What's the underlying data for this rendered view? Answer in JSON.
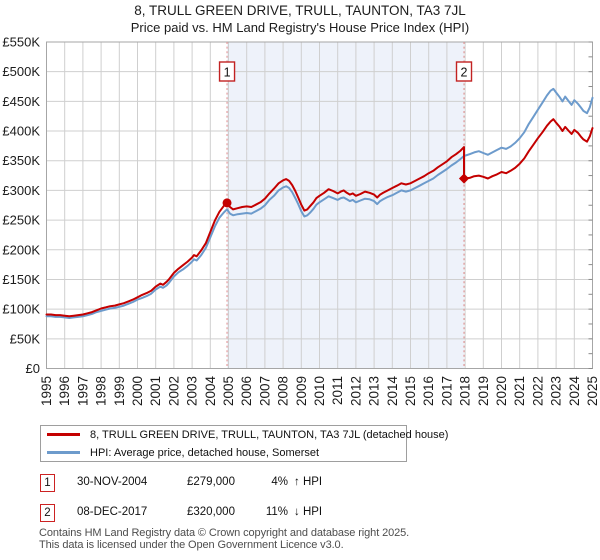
{
  "title": "8, TRULL GREEN DRIVE, TRULL, TAUNTON, TA3 7JL",
  "subtitle": "Price paid vs. HM Land Registry's House Price Index (HPI)",
  "chart_data": {
    "type": "line",
    "units": "GBP thousands",
    "x_axis": {
      "min": 1995,
      "max": 2025,
      "ticks": [
        1995,
        1996,
        1997,
        1998,
        1999,
        2000,
        2001,
        2002,
        2003,
        2004,
        2005,
        2006,
        2007,
        2008,
        2009,
        2010,
        2011,
        2012,
        2013,
        2014,
        2015,
        2016,
        2017,
        2018,
        2019,
        2020,
        2021,
        2022,
        2023,
        2024,
        2025
      ]
    },
    "y_axis": {
      "min": 0,
      "max": 550,
      "tick_step": 50,
      "tick_labels": [
        "£0",
        "£50K",
        "£100K",
        "£150K",
        "£200K",
        "£250K",
        "£300K",
        "£350K",
        "£400K",
        "£450K",
        "£500K",
        "£550K"
      ]
    },
    "grid": true,
    "shaded_region": {
      "from": 2004.92,
      "to": 2017.94,
      "color": "#eef2fa"
    },
    "event_lines": [
      {
        "label": "1",
        "x": 2004.92
      },
      {
        "label": "2",
        "x": 2017.94
      }
    ],
    "markers": [
      {
        "label": "1",
        "x": 2004.92,
        "value": 279,
        "shape": "circle",
        "color": "#c40000"
      },
      {
        "label": "2",
        "x": 2017.94,
        "value": 320,
        "shape": "diamond",
        "color": "#c40000"
      }
    ],
    "series": [
      {
        "name": "HPI: Average price, detached house, Somerset",
        "color": "#6d9bcc",
        "points": [
          [
            1995.0,
            88
          ],
          [
            1995.25,
            88
          ],
          [
            1995.5,
            87
          ],
          [
            1995.75,
            87
          ],
          [
            1996.0,
            86
          ],
          [
            1996.25,
            85
          ],
          [
            1996.5,
            86
          ],
          [
            1996.75,
            87
          ],
          [
            1997.0,
            88
          ],
          [
            1997.25,
            90
          ],
          [
            1997.5,
            92
          ],
          [
            1997.75,
            95
          ],
          [
            1998.0,
            97
          ],
          [
            1998.25,
            99
          ],
          [
            1998.5,
            101
          ],
          [
            1998.75,
            102
          ],
          [
            1999.0,
            104
          ],
          [
            1999.25,
            106
          ],
          [
            1999.5,
            109
          ],
          [
            1999.75,
            112
          ],
          [
            2000.0,
            116
          ],
          [
            2000.25,
            119
          ],
          [
            2000.5,
            122
          ],
          [
            2000.75,
            126
          ],
          [
            2001.0,
            133
          ],
          [
            2001.25,
            138
          ],
          [
            2001.4,
            136
          ],
          [
            2001.6,
            140
          ],
          [
            2001.75,
            145
          ],
          [
            2002.0,
            155
          ],
          [
            2002.25,
            162
          ],
          [
            2002.5,
            167
          ],
          [
            2002.75,
            173
          ],
          [
            2003.0,
            180
          ],
          [
            2003.1,
            184
          ],
          [
            2003.25,
            182
          ],
          [
            2003.5,
            191
          ],
          [
            2003.75,
            203
          ],
          [
            2004.0,
            221
          ],
          [
            2004.25,
            239
          ],
          [
            2004.5,
            254
          ],
          [
            2004.75,
            263
          ],
          [
            2004.92,
            268
          ],
          [
            2005.08,
            261
          ],
          [
            2005.25,
            258
          ],
          [
            2005.5,
            260
          ],
          [
            2005.75,
            261
          ],
          [
            2006.0,
            262
          ],
          [
            2006.25,
            261
          ],
          [
            2006.5,
            265
          ],
          [
            2006.75,
            269
          ],
          [
            2007.0,
            275
          ],
          [
            2007.25,
            284
          ],
          [
            2007.5,
            291
          ],
          [
            2007.75,
            300
          ],
          [
            2008.0,
            305
          ],
          [
            2008.17,
            307
          ],
          [
            2008.33,
            304
          ],
          [
            2008.5,
            297
          ],
          [
            2008.67,
            287
          ],
          [
            2008.83,
            277
          ],
          [
            2009.0,
            265
          ],
          [
            2009.17,
            256
          ],
          [
            2009.33,
            258
          ],
          [
            2009.5,
            263
          ],
          [
            2009.67,
            269
          ],
          [
            2009.83,
            276
          ],
          [
            2010.0,
            280
          ],
          [
            2010.25,
            285
          ],
          [
            2010.5,
            290
          ],
          [
            2010.75,
            287
          ],
          [
            2011.0,
            284
          ],
          [
            2011.17,
            287
          ],
          [
            2011.33,
            288
          ],
          [
            2011.5,
            285
          ],
          [
            2011.67,
            282
          ],
          [
            2011.83,
            284
          ],
          [
            2012.0,
            280
          ],
          [
            2012.25,
            283
          ],
          [
            2012.5,
            286
          ],
          [
            2012.75,
            285
          ],
          [
            2013.0,
            282
          ],
          [
            2013.17,
            277
          ],
          [
            2013.33,
            282
          ],
          [
            2013.5,
            285
          ],
          [
            2013.75,
            289
          ],
          [
            2014.0,
            292
          ],
          [
            2014.25,
            296
          ],
          [
            2014.5,
            300
          ],
          [
            2014.75,
            298
          ],
          [
            2015.0,
            300
          ],
          [
            2015.25,
            304
          ],
          [
            2015.5,
            308
          ],
          [
            2015.75,
            312
          ],
          [
            2016.0,
            316
          ],
          [
            2016.25,
            320
          ],
          [
            2016.5,
            326
          ],
          [
            2016.75,
            331
          ],
          [
            2017.0,
            336
          ],
          [
            2017.25,
            342
          ],
          [
            2017.5,
            347
          ],
          [
            2017.75,
            353
          ],
          [
            2017.94,
            358
          ],
          [
            2018.25,
            361
          ],
          [
            2018.5,
            364
          ],
          [
            2018.75,
            366
          ],
          [
            2019.0,
            363
          ],
          [
            2019.25,
            360
          ],
          [
            2019.5,
            364
          ],
          [
            2019.75,
            368
          ],
          [
            2020.0,
            372
          ],
          [
            2020.25,
            370
          ],
          [
            2020.5,
            374
          ],
          [
            2020.75,
            380
          ],
          [
            2021.0,
            388
          ],
          [
            2021.25,
            398
          ],
          [
            2021.5,
            412
          ],
          [
            2021.75,
            424
          ],
          [
            2022.0,
            436
          ],
          [
            2022.25,
            448
          ],
          [
            2022.5,
            460
          ],
          [
            2022.7,
            468
          ],
          [
            2022.85,
            471
          ],
          [
            2023.0,
            465
          ],
          [
            2023.2,
            457
          ],
          [
            2023.35,
            450
          ],
          [
            2023.5,
            458
          ],
          [
            2023.7,
            450
          ],
          [
            2023.85,
            444
          ],
          [
            2024.0,
            452
          ],
          [
            2024.2,
            446
          ],
          [
            2024.35,
            440
          ],
          [
            2024.5,
            434
          ],
          [
            2024.7,
            430
          ],
          [
            2024.85,
            440
          ],
          [
            2025.0,
            456
          ]
        ]
      },
      {
        "name": "8, TRULL GREEN DRIVE, TRULL, TAUNTON, TA3 7JL (detached house)",
        "color": "#c40000",
        "points": [
          [
            1995.0,
            91
          ],
          [
            1995.25,
            91
          ],
          [
            1995.5,
            90
          ],
          [
            1995.75,
            90
          ],
          [
            1996.0,
            89
          ],
          [
            1996.25,
            88
          ],
          [
            1996.5,
            89
          ],
          [
            1996.75,
            90
          ],
          [
            1997.0,
            91
          ],
          [
            1997.25,
            93
          ],
          [
            1997.5,
            95
          ],
          [
            1997.75,
            98
          ],
          [
            1998.0,
            101
          ],
          [
            1998.25,
            103
          ],
          [
            1998.5,
            105
          ],
          [
            1998.75,
            106
          ],
          [
            1999.0,
            108
          ],
          [
            1999.25,
            110
          ],
          [
            1999.5,
            113
          ],
          [
            1999.75,
            116
          ],
          [
            2000.0,
            120
          ],
          [
            2000.25,
            124
          ],
          [
            2000.5,
            127
          ],
          [
            2000.75,
            131
          ],
          [
            2001.0,
            138
          ],
          [
            2001.25,
            143
          ],
          [
            2001.4,
            141
          ],
          [
            2001.6,
            146
          ],
          [
            2001.75,
            151
          ],
          [
            2002.0,
            161
          ],
          [
            2002.25,
            168
          ],
          [
            2002.5,
            174
          ],
          [
            2002.75,
            180
          ],
          [
            2003.0,
            187
          ],
          [
            2003.1,
            191
          ],
          [
            2003.25,
            189
          ],
          [
            2003.5,
            199
          ],
          [
            2003.75,
            211
          ],
          [
            2004.0,
            230
          ],
          [
            2004.25,
            249
          ],
          [
            2004.5,
            264
          ],
          [
            2004.75,
            274
          ],
          [
            2004.92,
            279
          ],
          [
            2005.08,
            272
          ],
          [
            2005.25,
            268
          ],
          [
            2005.5,
            270
          ],
          [
            2005.75,
            272
          ],
          [
            2006.0,
            273
          ],
          [
            2006.25,
            272
          ],
          [
            2006.5,
            276
          ],
          [
            2006.75,
            280
          ],
          [
            2007.0,
            286
          ],
          [
            2007.25,
            295
          ],
          [
            2007.5,
            303
          ],
          [
            2007.75,
            312
          ],
          [
            2008.0,
            317
          ],
          [
            2008.17,
            319
          ],
          [
            2008.33,
            316
          ],
          [
            2008.5,
            309
          ],
          [
            2008.67,
            299
          ],
          [
            2008.83,
            288
          ],
          [
            2009.0,
            276
          ],
          [
            2009.17,
            266
          ],
          [
            2009.33,
            268
          ],
          [
            2009.5,
            274
          ],
          [
            2009.67,
            280
          ],
          [
            2009.83,
            287
          ],
          [
            2010.0,
            291
          ],
          [
            2010.25,
            296
          ],
          [
            2010.5,
            302
          ],
          [
            2010.75,
            299
          ],
          [
            2011.0,
            295
          ],
          [
            2011.17,
            298
          ],
          [
            2011.33,
            300
          ],
          [
            2011.5,
            296
          ],
          [
            2011.67,
            293
          ],
          [
            2011.83,
            295
          ],
          [
            2012.0,
            291
          ],
          [
            2012.25,
            294
          ],
          [
            2012.5,
            298
          ],
          [
            2012.75,
            296
          ],
          [
            2013.0,
            293
          ],
          [
            2013.17,
            288
          ],
          [
            2013.33,
            293
          ],
          [
            2013.5,
            296
          ],
          [
            2013.75,
            300
          ],
          [
            2014.0,
            304
          ],
          [
            2014.25,
            308
          ],
          [
            2014.5,
            312
          ],
          [
            2014.75,
            310
          ],
          [
            2015.0,
            312
          ],
          [
            2015.25,
            316
          ],
          [
            2015.5,
            320
          ],
          [
            2015.75,
            324
          ],
          [
            2016.0,
            329
          ],
          [
            2016.25,
            333
          ],
          [
            2016.5,
            339
          ],
          [
            2016.75,
            344
          ],
          [
            2017.0,
            349
          ],
          [
            2017.25,
            356
          ],
          [
            2017.5,
            361
          ],
          [
            2017.75,
            367
          ],
          [
            2017.94,
            373
          ],
          [
            2017.94,
            320
          ],
          [
            2018.25,
            321
          ],
          [
            2018.5,
            324
          ],
          [
            2018.75,
            325
          ],
          [
            2019.0,
            323
          ],
          [
            2019.25,
            320
          ],
          [
            2019.5,
            324
          ],
          [
            2019.75,
            327
          ],
          [
            2020.0,
            331
          ],
          [
            2020.25,
            329
          ],
          [
            2020.5,
            333
          ],
          [
            2020.75,
            338
          ],
          [
            2021.0,
            345
          ],
          [
            2021.25,
            354
          ],
          [
            2021.5,
            366
          ],
          [
            2021.75,
            377
          ],
          [
            2022.0,
            388
          ],
          [
            2022.25,
            398
          ],
          [
            2022.5,
            409
          ],
          [
            2022.7,
            416
          ],
          [
            2022.85,
            420
          ],
          [
            2023.0,
            414
          ],
          [
            2023.2,
            407
          ],
          [
            2023.35,
            400
          ],
          [
            2023.5,
            407
          ],
          [
            2023.7,
            400
          ],
          [
            2023.85,
            395
          ],
          [
            2024.0,
            402
          ],
          [
            2024.2,
            397
          ],
          [
            2024.35,
            391
          ],
          [
            2024.5,
            386
          ],
          [
            2024.7,
            382
          ],
          [
            2024.85,
            391
          ],
          [
            2025.0,
            405
          ]
        ]
      }
    ],
    "colors": {
      "grid": "#cfcfcf",
      "border": "#a6a6a6",
      "dashed_line": "#e08888",
      "marker_box_border": "#c22222",
      "shaded_band": "#eef2fa"
    }
  },
  "legend": {
    "items": [
      {
        "label": "8, TRULL GREEN DRIVE, TRULL, TAUNTON, TA3 7JL (detached house)",
        "color": "#c40000"
      },
      {
        "label": "HPI: Average price, detached house, Somerset",
        "color": "#6d9bcc"
      }
    ]
  },
  "annotations": [
    {
      "num": "1",
      "date": "30-NOV-2004",
      "price": "£279,000",
      "pct": "4%",
      "rel": "↑ HPI"
    },
    {
      "num": "2",
      "date": "08-DEC-2017",
      "price": "£320,000",
      "pct": "11%",
      "rel": "↓ HPI"
    }
  ],
  "footer": {
    "line1": "Contains HM Land Registry data © Crown copyright and database right 2025.",
    "line2": "This data is licensed under the Open Government Licence v3.0."
  }
}
